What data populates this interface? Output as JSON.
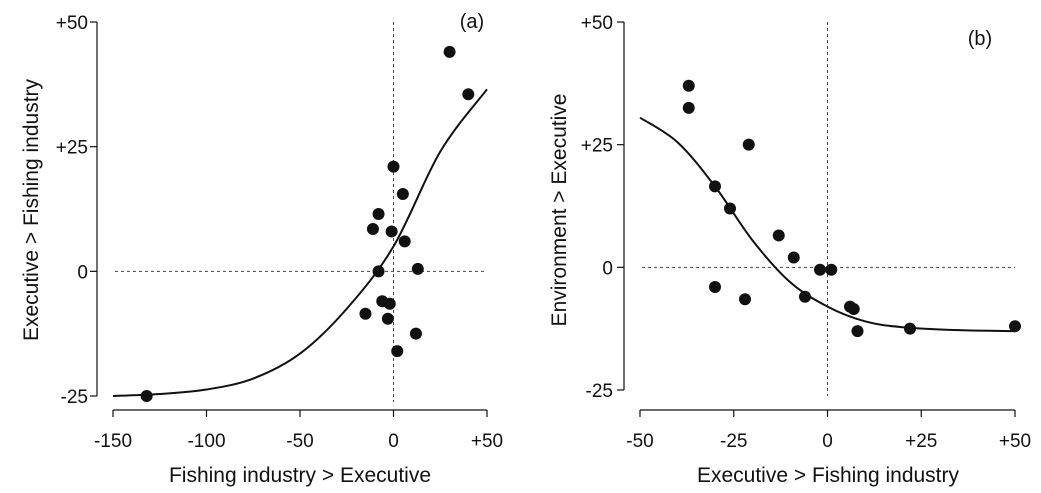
{
  "chart_data": [
    {
      "type": "scatter",
      "panel_label": "(a)",
      "xlabel": "Fishing industry > Executive",
      "ylabel": "Executive > Fishing industry",
      "xlim": [
        -150,
        50
      ],
      "ylim": [
        -25,
        50
      ],
      "xticks": [
        -150,
        -100,
        -50,
        0,
        50
      ],
      "xtick_labels": [
        "-150",
        "-100",
        "-50",
        "0",
        "+50"
      ],
      "yticks": [
        -25,
        0,
        25,
        50
      ],
      "ytick_labels": [
        "-25",
        "0",
        "+25",
        "+50"
      ],
      "reference_lines": {
        "x": 0,
        "y": 0,
        "style": "dotted"
      },
      "points": [
        {
          "x": -132,
          "y": -25
        },
        {
          "x": -15,
          "y": -8.5
        },
        {
          "x": -11,
          "y": 8.5
        },
        {
          "x": -8,
          "y": 11.5
        },
        {
          "x": -8,
          "y": 0
        },
        {
          "x": -6,
          "y": -6
        },
        {
          "x": -3,
          "y": -9.5
        },
        {
          "x": -2,
          "y": -6.5
        },
        {
          "x": -1,
          "y": 8
        },
        {
          "x": 0,
          "y": 21
        },
        {
          "x": 2,
          "y": -16
        },
        {
          "x": 5,
          "y": 15.5
        },
        {
          "x": 6,
          "y": 6
        },
        {
          "x": 12,
          "y": -12.5
        },
        {
          "x": 13,
          "y": 0.5
        },
        {
          "x": 30,
          "y": 44
        },
        {
          "x": 40,
          "y": 35.5
        }
      ],
      "fit_curve": [
        {
          "x": -150,
          "y": -25
        },
        {
          "x": -125,
          "y": -24.6
        },
        {
          "x": -100,
          "y": -23.7
        },
        {
          "x": -75,
          "y": -21.5
        },
        {
          "x": -50,
          "y": -16.5
        },
        {
          "x": -25,
          "y": -7.5
        },
        {
          "x": 0,
          "y": 5
        },
        {
          "x": 25,
          "y": 24
        },
        {
          "x": 50,
          "y": 36.5
        }
      ]
    },
    {
      "type": "scatter",
      "panel_label": "(b)",
      "xlabel": "Executive > Fishing industry",
      "ylabel": "Environment > Executive",
      "xlim": [
        -50,
        50
      ],
      "ylim": [
        -25,
        50
      ],
      "xticks": [
        -50,
        -25,
        0,
        25,
        50
      ],
      "xtick_labels": [
        "-50",
        "-25",
        "0",
        "+25",
        "+50"
      ],
      "yticks": [
        -25,
        0,
        25,
        50
      ],
      "ytick_labels": [
        "-25",
        "0",
        "+25",
        "+50"
      ],
      "reference_lines": {
        "x": 0,
        "y": 0,
        "style": "dotted"
      },
      "points": [
        {
          "x": -37,
          "y": 37
        },
        {
          "x": -37,
          "y": 32.5
        },
        {
          "x": -30,
          "y": 16.5
        },
        {
          "x": -30,
          "y": -4
        },
        {
          "x": -26,
          "y": 12
        },
        {
          "x": -22,
          "y": -6.5
        },
        {
          "x": -21,
          "y": 25
        },
        {
          "x": -13,
          "y": 6.5
        },
        {
          "x": -9,
          "y": 2
        },
        {
          "x": -6,
          "y": -6
        },
        {
          "x": -2,
          "y": -0.5
        },
        {
          "x": 1,
          "y": -0.5
        },
        {
          "x": 6,
          "y": -8
        },
        {
          "x": 7,
          "y": -8.5
        },
        {
          "x": 8,
          "y": -13
        },
        {
          "x": 22,
          "y": -12.5
        },
        {
          "x": 50,
          "y": -12
        }
      ],
      "fit_curve": [
        {
          "x": -50,
          "y": 30.5
        },
        {
          "x": -40,
          "y": 25.5
        },
        {
          "x": -30,
          "y": 16.5
        },
        {
          "x": -20,
          "y": 5.5
        },
        {
          "x": -10,
          "y": -3
        },
        {
          "x": 0,
          "y": -8
        },
        {
          "x": 10,
          "y": -11
        },
        {
          "x": 20,
          "y": -12.2
        },
        {
          "x": 35,
          "y": -12.8
        },
        {
          "x": 50,
          "y": -13
        }
      ]
    }
  ]
}
